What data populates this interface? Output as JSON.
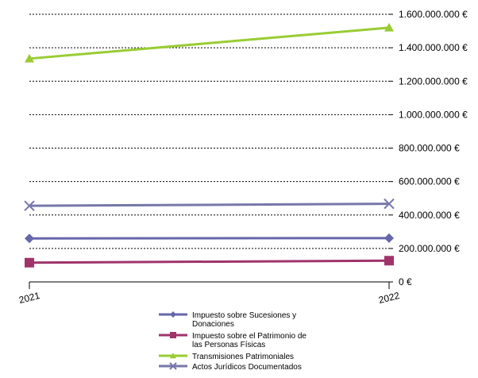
{
  "chart_data": {
    "type": "line",
    "title": "",
    "xlabel": "",
    "ylabel": "",
    "x": [
      "2021",
      "2022"
    ],
    "ylim": [
      0,
      1600000000
    ],
    "yticks": [
      0,
      200000000,
      400000000,
      600000000,
      800000000,
      1000000000,
      1200000000,
      1400000000,
      1600000000
    ],
    "ytick_labels": [
      "0 €",
      "200.000.000 €",
      "400.000.000 €",
      "600.000.000 €",
      "800.000.000 €",
      "1.000.000.000 €",
      "1.200.000.000 €",
      "1.400.000.000 €",
      "1.600.000.000 €"
    ],
    "yaxis_position": "right",
    "grid": true,
    "legend_position": "bottom",
    "series": [
      {
        "name": "Impuesto sobre Sucesiones y Donaciones",
        "legend_lines": [
          "Impuesto sobre Sucesiones y",
          "Donaciones"
        ],
        "values": [
          260000000,
          262000000
        ],
        "color": "#6666aa",
        "marker": "diamond"
      },
      {
        "name": "Impuesto sobre el Patrimonio de las Personas Físicas",
        "legend_lines": [
          "Impuesto sobre el Patrimonio de",
          "las Personas Físicas"
        ],
        "values": [
          115000000,
          127000000
        ],
        "color": "#a0336a",
        "marker": "square"
      },
      {
        "name": "Transmisiones Patrimoniales",
        "legend_lines": [
          "Transmisiones Patrimoniales"
        ],
        "values": [
          1335000000,
          1520000000
        ],
        "color": "#99cc33",
        "marker": "triangle"
      },
      {
        "name": "Actos Jurídicos Documentados",
        "legend_lines": [
          "Actos Jurídicos Documentados"
        ],
        "values": [
          455000000,
          467000000
        ],
        "color": "#7777aa",
        "marker": "x"
      }
    ]
  }
}
